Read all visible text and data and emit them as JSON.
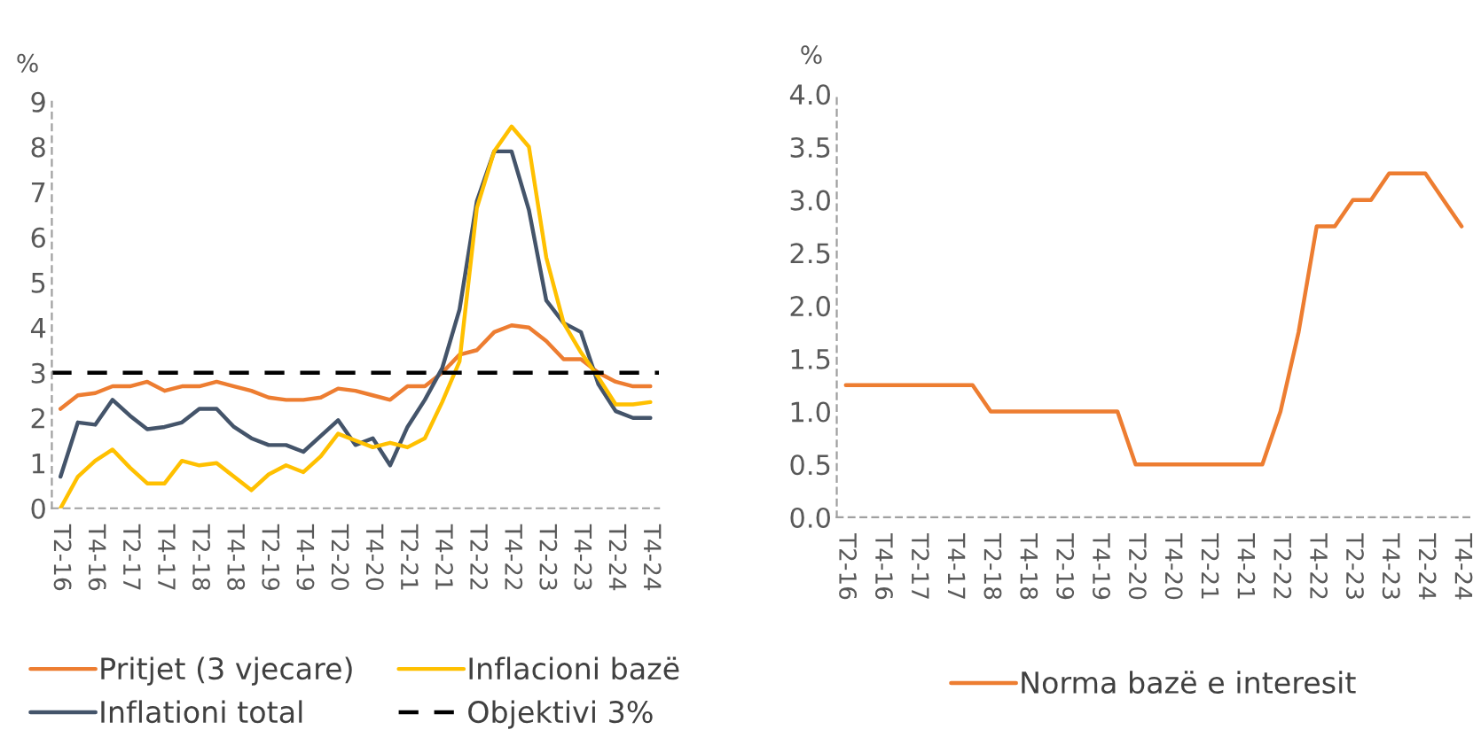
{
  "chart_data": [
    {
      "type": "line",
      "ylabel": "%",
      "categories": [
        "T2-16",
        null,
        "T4-16",
        null,
        "T2-17",
        null,
        "T4-17",
        null,
        "T2-18",
        null,
        "T4-18",
        null,
        "T2-19",
        null,
        "T4-19",
        null,
        "T2-20",
        null,
        "T4-20",
        null,
        "T2-21",
        null,
        "T4-21",
        null,
        "T2-22",
        null,
        "T4-22",
        null,
        "T2-23",
        null,
        "T4-23",
        null,
        "T2-24",
        null,
        "T4-24"
      ],
      "series": [
        {
          "name": "Pritjet (3 vjecare)",
          "color": "#ed7d31",
          "values": [
            2.2,
            2.5,
            2.55,
            2.7,
            2.7,
            2.8,
            2.6,
            2.7,
            2.7,
            2.8,
            2.7,
            2.6,
            2.45,
            2.4,
            2.4,
            2.45,
            2.65,
            2.6,
            2.5,
            2.4,
            2.7,
            2.7,
            3.0,
            3.4,
            3.5,
            3.9,
            4.05,
            4.0,
            3.7,
            3.3,
            3.3,
            3.0,
            2.8,
            2.7,
            2.7
          ]
        },
        {
          "name": "Inflationi total",
          "color": "#44546a",
          "values": [
            0.7,
            1.9,
            1.85,
            2.4,
            2.05,
            1.75,
            1.8,
            1.9,
            2.2,
            2.2,
            1.8,
            1.55,
            1.4,
            1.4,
            1.25,
            1.6,
            1.95,
            1.4,
            1.55,
            0.95,
            1.8,
            2.4,
            3.1,
            4.4,
            6.8,
            7.9,
            7.9,
            6.6,
            4.6,
            4.1,
            3.9,
            2.75,
            2.15,
            2.0,
            2.0
          ]
        },
        {
          "name": "Inflacioni bazë",
          "color": "#ffc000",
          "values": [
            0.0,
            0.7,
            1.05,
            1.3,
            0.9,
            0.55,
            0.55,
            1.05,
            0.95,
            1.0,
            0.7,
            0.4,
            0.75,
            0.95,
            0.8,
            1.15,
            1.65,
            1.5,
            1.35,
            1.45,
            1.35,
            1.55,
            2.35,
            3.25,
            6.65,
            7.9,
            8.45,
            8.0,
            5.55,
            4.1,
            3.45,
            2.9,
            2.3,
            2.3,
            2.35
          ]
        }
      ],
      "ref_lines": [
        {
          "axis": "y",
          "value": 3,
          "label": "Objektivi 3%",
          "color": "#000000",
          "line_style": "dashed"
        }
      ],
      "ylim": [
        0,
        9
      ],
      "yticks": [
        0,
        1,
        2,
        3,
        4,
        5,
        6,
        7,
        8,
        9
      ],
      "grid": false,
      "legend": "bottom"
    },
    {
      "type": "line",
      "ylabel": "%",
      "categories": [
        "T2-16",
        null,
        "T4-16",
        null,
        "T2-17",
        null,
        "T4-17",
        null,
        "T2-18",
        null,
        "T4-18",
        null,
        "T2-19",
        null,
        "T4-19",
        null,
        "T2-20",
        null,
        "T4-20",
        null,
        "T2-21",
        null,
        "T4-21",
        null,
        "T2-22",
        null,
        "T4-22",
        null,
        "T2-23",
        null,
        "T4-23",
        null,
        "T2-24",
        null,
        "T4-24"
      ],
      "series": [
        {
          "name": "Norma bazë e interesit",
          "color": "#ed7d31",
          "values": [
            1.25,
            1.25,
            1.25,
            1.25,
            1.25,
            1.25,
            1.25,
            1.25,
            1.0,
            1.0,
            1.0,
            1.0,
            1.0,
            1.0,
            1.0,
            1.0,
            0.5,
            0.5,
            0.5,
            0.5,
            0.5,
            0.5,
            0.5,
            0.5,
            1.0,
            1.75,
            2.75,
            2.75,
            3.0,
            3.0,
            3.25,
            3.25,
            3.25,
            3.0,
            2.75
          ]
        }
      ],
      "ylim": [
        0,
        4
      ],
      "yticks": [
        {
          "value": 0,
          "label": "0.0"
        },
        {
          "value": 0.5,
          "label": "0.5"
        },
        {
          "value": 1,
          "label": "1.0"
        },
        {
          "value": 1.5,
          "label": "1.5"
        },
        {
          "value": 2,
          "label": "2.0"
        },
        {
          "value": 2.5,
          "label": "2.5"
        },
        {
          "value": 3,
          "label": "3.0"
        },
        {
          "value": 3.5,
          "label": "3.5"
        },
        {
          "value": 4,
          "label": "4.0"
        }
      ],
      "grid": false,
      "legend": "bottom"
    }
  ]
}
